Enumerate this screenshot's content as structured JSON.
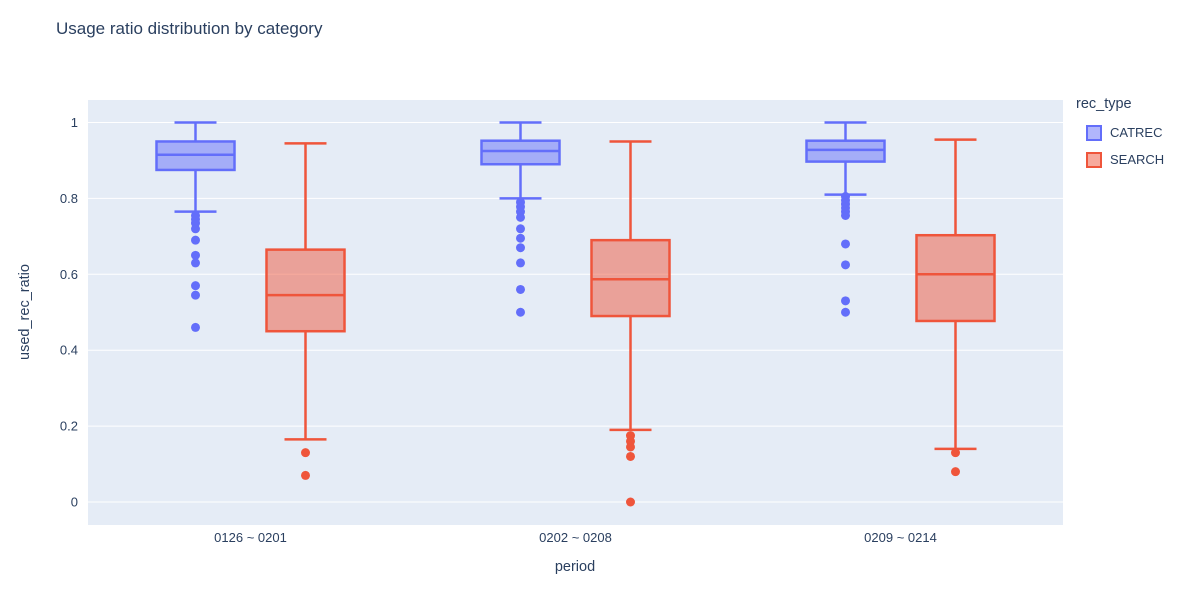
{
  "title": "Usage ratio distribution by category",
  "colors": {
    "background": "#ffffff",
    "plot_background": "#e5ecf6",
    "gridline": "#ffffff",
    "text": "#2a3f5f",
    "catrec": "#636efa",
    "search": "#ef553b"
  },
  "legend": {
    "title": "rec_type",
    "items": [
      {
        "label": "CATREC",
        "color": "#636efa"
      },
      {
        "label": "SEARCH",
        "color": "#ef553b"
      }
    ]
  },
  "chart_data": {
    "type": "box",
    "title": "Usage ratio distribution by category",
    "xlabel": "period",
    "ylabel": "used_rec_ratio",
    "categories": [
      "0126 ~ 0201",
      "0202 ~ 0208",
      "0209 ~ 0214"
    ],
    "yticks": [
      {
        "v": 0,
        "label": "0"
      },
      {
        "v": 0.2,
        "label": "0.2"
      },
      {
        "v": 0.4,
        "label": "0.4"
      },
      {
        "v": 0.6,
        "label": "0.6"
      },
      {
        "v": 0.8,
        "label": "0.8"
      },
      {
        "v": 1,
        "label": "1"
      }
    ],
    "ylim": [
      -0.06,
      1.06
    ],
    "grid": true,
    "legend_position": "right",
    "legend_title": "rec_type",
    "series": [
      {
        "name": "CATREC",
        "color": "#636efa",
        "boxes": [
          {
            "category": "0126 ~ 0201",
            "whisker_low": 0.765,
            "q1": 0.875,
            "median": 0.915,
            "q3": 0.95,
            "whisker_high": 1.0,
            "outliers": [
              0.755,
              0.745,
              0.735,
              0.72,
              0.69,
              0.65,
              0.63,
              0.57,
              0.545,
              0.46
            ]
          },
          {
            "category": "0202 ~ 0208",
            "whisker_low": 0.8,
            "q1": 0.89,
            "median": 0.925,
            "q3": 0.952,
            "whisker_high": 1.0,
            "outliers": [
              0.79,
              0.778,
              0.765,
              0.75,
              0.72,
              0.695,
              0.67,
              0.63,
              0.56,
              0.5
            ]
          },
          {
            "category": "0209 ~ 0214",
            "whisker_low": 0.81,
            "q1": 0.897,
            "median": 0.928,
            "q3": 0.952,
            "whisker_high": 1.0,
            "outliers": [
              0.805,
              0.795,
              0.785,
              0.775,
              0.765,
              0.755,
              0.68,
              0.625,
              0.53,
              0.5
            ]
          }
        ]
      },
      {
        "name": "SEARCH",
        "color": "#ef553b",
        "boxes": [
          {
            "category": "0126 ~ 0201",
            "whisker_low": 0.165,
            "q1": 0.45,
            "median": 0.545,
            "q3": 0.665,
            "whisker_high": 0.945,
            "outliers": [
              0.13,
              0.07
            ]
          },
          {
            "category": "0202 ~ 0208",
            "whisker_low": 0.19,
            "q1": 0.49,
            "median": 0.587,
            "q3": 0.69,
            "whisker_high": 0.95,
            "outliers": [
              0.175,
              0.16,
              0.145,
              0.12,
              0.0
            ]
          },
          {
            "category": "0209 ~ 0214",
            "whisker_low": 0.14,
            "q1": 0.477,
            "median": 0.6,
            "q3": 0.703,
            "whisker_high": 0.955,
            "outliers": [
              0.13,
              0.08
            ]
          }
        ]
      }
    ]
  }
}
